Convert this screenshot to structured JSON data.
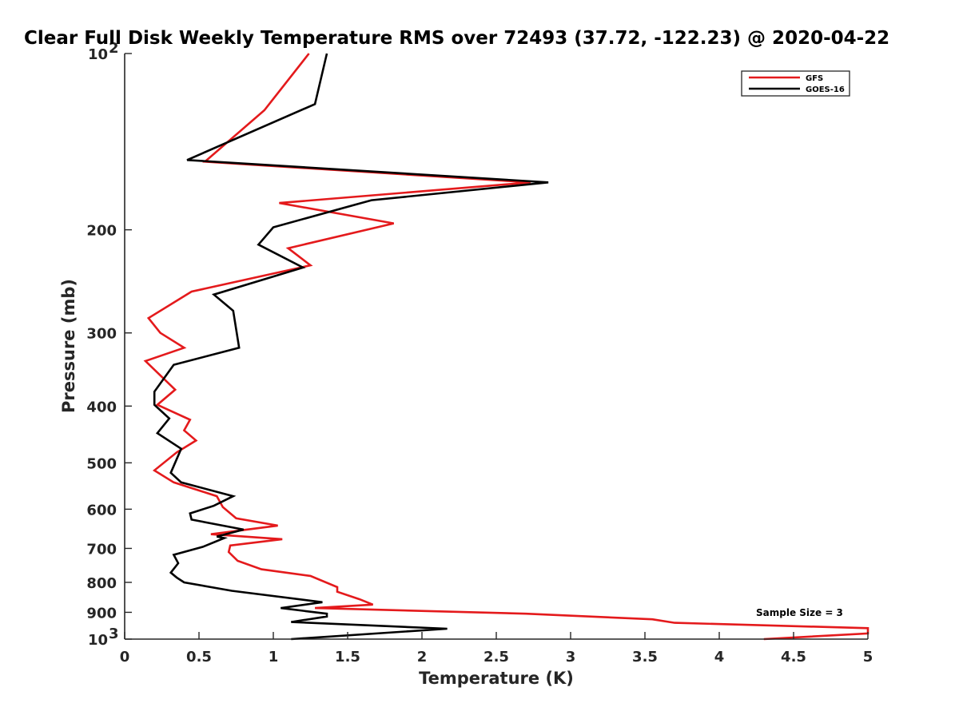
{
  "chart_data": {
    "type": "line",
    "title": "Clear Full Disk Weekly Temperature RMS over 72493 (37.72, -122.23) @ 2020-04-22",
    "xlabel": "Temperature (K)",
    "ylabel": "Pressure (mb)",
    "xlim": [
      0,
      5
    ],
    "ylim": [
      100,
      1000
    ],
    "yscale": "log",
    "y_reversed": true,
    "x_ticks": [
      {
        "value": 0,
        "label": "0"
      },
      {
        "value": 0.5,
        "label": "0.5"
      },
      {
        "value": 1,
        "label": "1"
      },
      {
        "value": 1.5,
        "label": "1.5"
      },
      {
        "value": 2,
        "label": "2"
      },
      {
        "value": 2.5,
        "label": "2.5"
      },
      {
        "value": 3,
        "label": "3"
      },
      {
        "value": 3.5,
        "label": "3.5"
      },
      {
        "value": 4,
        "label": "4"
      },
      {
        "value": 4.5,
        "label": "4.5"
      },
      {
        "value": 5,
        "label": "5"
      }
    ],
    "y_ticks": [
      {
        "value": 100,
        "label": "10",
        "sup": "2"
      },
      {
        "value": 200,
        "label": "200",
        "sup": ""
      },
      {
        "value": 300,
        "label": "300",
        "sup": ""
      },
      {
        "value": 400,
        "label": "400",
        "sup": ""
      },
      {
        "value": 500,
        "label": "500",
        "sup": ""
      },
      {
        "value": 600,
        "label": "600",
        "sup": ""
      },
      {
        "value": 700,
        "label": "700",
        "sup": ""
      },
      {
        "value": 800,
        "label": "800",
        "sup": ""
      },
      {
        "value": 900,
        "label": "900",
        "sup": ""
      },
      {
        "value": 1000,
        "label": "10",
        "sup": "3"
      }
    ],
    "grid": false,
    "legend_position": "top-right",
    "annotation": "Sample Size = 3",
    "series": [
      {
        "name": "GFS",
        "color": "#e41a1c",
        "points": [
          [
            1.24,
            100
          ],
          [
            0.94,
            125
          ],
          [
            0.54,
            153
          ],
          [
            2.73,
            166
          ],
          [
            1.04,
            180
          ],
          [
            1.81,
            195
          ],
          [
            1.1,
            215
          ],
          [
            1.25,
            230
          ],
          [
            0.45,
            255
          ],
          [
            0.16,
            283
          ],
          [
            0.24,
            300
          ],
          [
            0.4,
            318
          ],
          [
            0.14,
            335
          ],
          [
            0.34,
            375
          ],
          [
            0.22,
            398
          ],
          [
            0.44,
            422
          ],
          [
            0.4,
            440
          ],
          [
            0.48,
            458
          ],
          [
            0.35,
            480
          ],
          [
            0.2,
            515
          ],
          [
            0.33,
            540
          ],
          [
            0.62,
            570
          ],
          [
            0.66,
            595
          ],
          [
            0.75,
            622
          ],
          [
            1.03,
            640
          ],
          [
            0.58,
            662
          ],
          [
            1.06,
            675
          ],
          [
            0.71,
            692
          ],
          [
            0.7,
            710
          ],
          [
            0.76,
            735
          ],
          [
            0.92,
            760
          ],
          [
            1.25,
            780
          ],
          [
            1.43,
            815
          ],
          [
            1.43,
            830
          ],
          [
            1.58,
            855
          ],
          [
            1.67,
            873
          ],
          [
            1.28,
            885
          ],
          [
            2.7,
            905
          ],
          [
            3.55,
            925
          ],
          [
            3.7,
            938
          ],
          [
            5.0,
            958
          ],
          [
            5.0,
            978
          ],
          [
            4.3,
            1000
          ]
        ]
      },
      {
        "name": "GOES-16",
        "color": "#000000",
        "points": [
          [
            1.36,
            100
          ],
          [
            1.28,
            122
          ],
          [
            0.42,
            152
          ],
          [
            2.85,
            166
          ],
          [
            1.66,
            178
          ],
          [
            1.0,
            198
          ],
          [
            0.9,
            212
          ],
          [
            1.2,
            232
          ],
          [
            0.6,
            258
          ],
          [
            0.73,
            275
          ],
          [
            0.77,
            318
          ],
          [
            0.33,
            340
          ],
          [
            0.2,
            378
          ],
          [
            0.2,
            398
          ],
          [
            0.3,
            420
          ],
          [
            0.22,
            445
          ],
          [
            0.38,
            473
          ],
          [
            0.31,
            520
          ],
          [
            0.38,
            540
          ],
          [
            0.73,
            570
          ],
          [
            0.6,
            592
          ],
          [
            0.44,
            610
          ],
          [
            0.45,
            625
          ],
          [
            0.8,
            650
          ],
          [
            0.62,
            668
          ],
          [
            0.67,
            672
          ],
          [
            0.53,
            695
          ],
          [
            0.33,
            718
          ],
          [
            0.36,
            742
          ],
          [
            0.31,
            770
          ],
          [
            0.35,
            785
          ],
          [
            0.4,
            800
          ],
          [
            0.72,
            827
          ],
          [
            1.33,
            865
          ],
          [
            1.05,
            885
          ],
          [
            1.36,
            905
          ],
          [
            1.36,
            915
          ],
          [
            1.12,
            935
          ],
          [
            2.17,
            960
          ],
          [
            1.12,
            1000
          ]
        ]
      }
    ]
  }
}
